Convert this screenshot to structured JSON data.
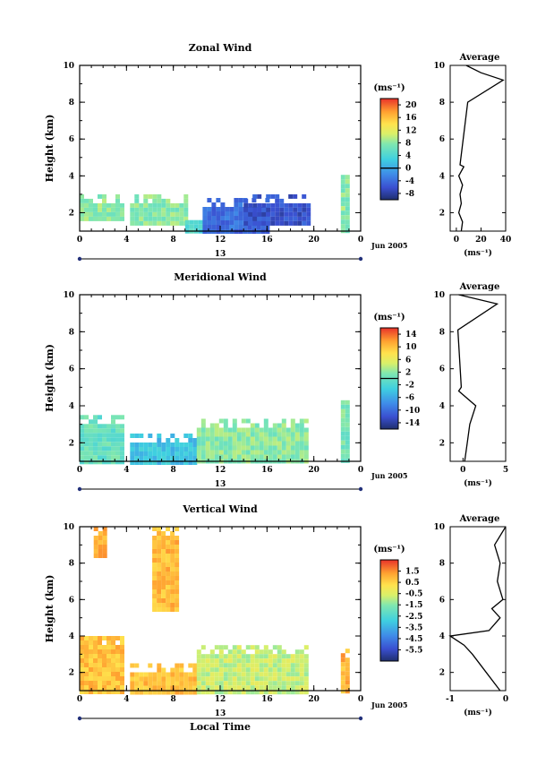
{
  "chart_data": [
    {
      "type": "heatmap",
      "title": "Zonal Wind",
      "ylabel": "Height (km)",
      "ylim": [
        1,
        10
      ],
      "yticks": [
        "2",
        "4",
        "6",
        "8",
        "10"
      ],
      "xlim": [
        0,
        24
      ],
      "xticks": [
        "0",
        "4",
        "8",
        "12",
        "16",
        "20",
        "0"
      ],
      "date_axis": {
        "day": "13",
        "month": "Jun 2005"
      },
      "colorbar": {
        "unit": "(ms⁻¹)",
        "ticks": [
          "20",
          "16",
          "12",
          "8",
          "4",
          "0",
          "-4",
          "-8"
        ],
        "range": [
          -10,
          22
        ],
        "zero_line": 0
      },
      "regions": [
        {
          "x": [
            0,
            3.5
          ],
          "y": [
            1.6,
            3.0
          ],
          "value": 8
        },
        {
          "x": [
            4.3,
            9
          ],
          "y": [
            1.5,
            3.0
          ],
          "value": 8
        },
        {
          "x": [
            9,
            11
          ],
          "y": [
            1.0,
            1.6
          ],
          "value": 4
        },
        {
          "x": [
            10.5,
            16
          ],
          "y": [
            1.0,
            2.8
          ],
          "value": -4
        },
        {
          "x": [
            14,
            19.5
          ],
          "y": [
            1.5,
            3.0
          ],
          "value": -6
        },
        {
          "x": [
            22.3,
            22.8
          ],
          "y": [
            1.0,
            4.3
          ],
          "value": 8
        }
      ],
      "average": {
        "xlabel": "(ms⁻¹)",
        "title": "Average",
        "xticks": [
          "0",
          "20",
          "40"
        ],
        "xlim": [
          -5,
          40
        ],
        "yticks": [
          "2",
          "4",
          "6",
          "8",
          "10"
        ],
        "profile": [
          [
            4,
            1
          ],
          [
            5,
            1.5
          ],
          [
            2,
            2
          ],
          [
            4,
            2.5
          ],
          [
            3,
            3
          ],
          [
            5,
            3.5
          ],
          [
            2,
            4
          ],
          [
            6,
            4.5
          ],
          [
            3,
            4.6
          ],
          [
            9.2,
            8
          ],
          [
            38,
            9.2
          ],
          [
            20,
            9.6
          ],
          [
            8,
            10
          ]
        ]
      }
    },
    {
      "type": "heatmap",
      "title": "Meridional Wind",
      "ylabel": "Height (km)",
      "ylim": [
        1,
        10
      ],
      "yticks": [
        "2",
        "4",
        "6",
        "8",
        "10"
      ],
      "xlim": [
        0,
        24
      ],
      "xticks": [
        "0",
        "4",
        "8",
        "12",
        "16",
        "20",
        "0"
      ],
      "date_axis": {
        "day": "13",
        "month": "Jun 2005"
      },
      "colorbar": {
        "unit": "(ms⁻¹)",
        "ticks": [
          "14",
          "10",
          "6",
          "2",
          "-2",
          "-6",
          "-10",
          "-14"
        ],
        "range": [
          -16,
          16
        ],
        "zero_line": 0
      },
      "regions": [
        {
          "x": [
            0,
            3.5
          ],
          "y": [
            1.0,
            3.5
          ],
          "value": 0
        },
        {
          "x": [
            4.3,
            10
          ],
          "y": [
            1.0,
            2.5
          ],
          "value": -4
        },
        {
          "x": [
            10,
            19.5
          ],
          "y": [
            1.0,
            3.3
          ],
          "value": 2
        },
        {
          "x": [
            22.3,
            22.8
          ],
          "y": [
            1.0,
            4.3
          ],
          "value": 1
        }
      ],
      "average": {
        "xlabel": "(ms⁻¹)",
        "title": "Average",
        "xticks": [
          "0",
          "5"
        ],
        "xlim": [
          -1.5,
          5
        ],
        "yticks": [
          "2",
          "4",
          "6",
          "8",
          "10"
        ],
        "profile": [
          [
            0.2,
            1
          ],
          [
            0.5,
            2
          ],
          [
            0.8,
            3
          ],
          [
            1.5,
            4
          ],
          [
            -0.5,
            4.8
          ],
          [
            -0.2,
            5
          ],
          [
            -0.6,
            8.1
          ],
          [
            4,
            9.5
          ],
          [
            -0.5,
            10
          ]
        ]
      }
    },
    {
      "type": "heatmap",
      "title": "Vertical Wind",
      "ylabel": "Height (km)",
      "xlabel": "Local Time",
      "ylim": [
        1,
        10
      ],
      "yticks": [
        "2",
        "4",
        "6",
        "8",
        "10"
      ],
      "xlim": [
        0,
        24
      ],
      "xticks": [
        "0",
        "4",
        "8",
        "12",
        "16",
        "20",
        "0"
      ],
      "date_axis": {
        "day": "13",
        "month": "Jun 2005"
      },
      "colorbar": {
        "unit": "(ms⁻¹)",
        "ticks": [
          "1.5",
          "0.5",
          "-0.5",
          "-1.5",
          "-2.5",
          "-3.5",
          "-4.5",
          "-5.5"
        ],
        "range": [
          -6.5,
          2.5
        ]
      },
      "regions": [
        {
          "x": [
            0,
            3.5
          ],
          "y": [
            1.0,
            4.0
          ],
          "value": 0.8
        },
        {
          "x": [
            4.3,
            10
          ],
          "y": [
            1.0,
            2.5
          ],
          "value": 0.8
        },
        {
          "x": [
            10,
            19.5
          ],
          "y": [
            1.0,
            3.5
          ],
          "value": -0.8
        },
        {
          "x": [
            1.2,
            2.2
          ],
          "y": [
            8.3,
            10
          ],
          "value": 1.0
        },
        {
          "x": [
            6.2,
            8.2
          ],
          "y": [
            5.5,
            10
          ],
          "value": 0.9
        },
        {
          "x": [
            22.3,
            22.8
          ],
          "y": [
            1.0,
            3.3
          ],
          "value": 1.0
        }
      ],
      "average": {
        "xlabel": "(ms⁻¹)",
        "title": "Average",
        "xticks": [
          "-1",
          "0"
        ],
        "xlim": [
          -1,
          0
        ],
        "yticks": [
          "2",
          "4",
          "6",
          "8",
          "10"
        ],
        "profile": [
          [
            -0.1,
            1
          ],
          [
            -0.35,
            2
          ],
          [
            -0.6,
            3
          ],
          [
            -0.75,
            3.5
          ],
          [
            -1,
            4
          ],
          [
            -0.3,
            4.3
          ],
          [
            -0.1,
            5
          ],
          [
            -0.25,
            5.5
          ],
          [
            -0.05,
            6
          ],
          [
            -0.15,
            7
          ],
          [
            -0.1,
            8
          ],
          [
            -0.2,
            9
          ],
          [
            0,
            10
          ]
        ]
      }
    }
  ]
}
